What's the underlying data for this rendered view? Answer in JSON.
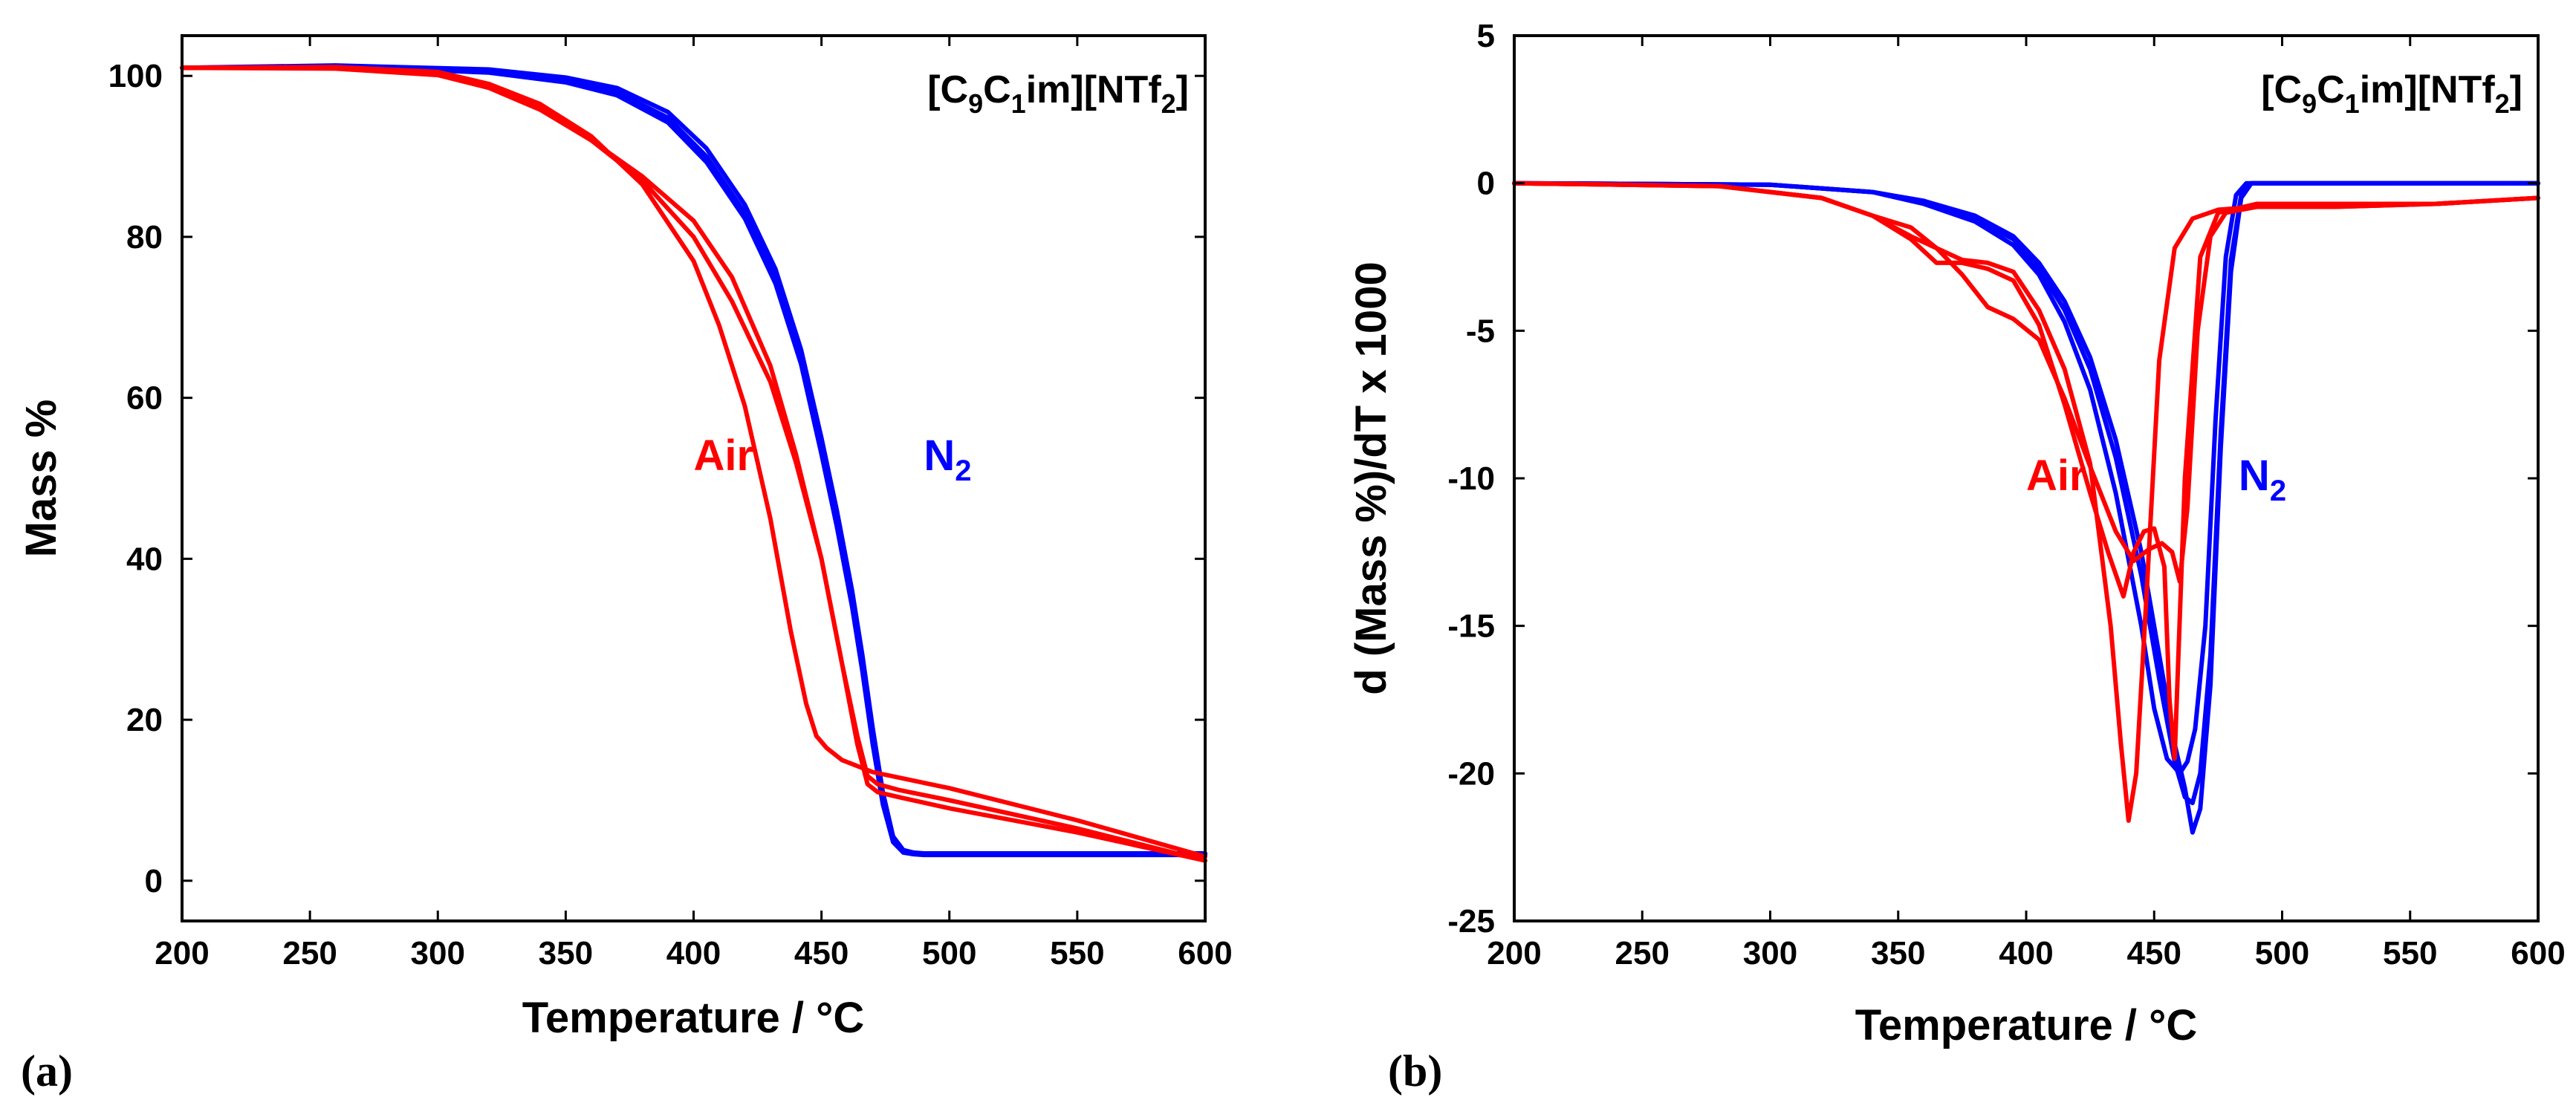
{
  "chart_data": [
    {
      "type": "line",
      "panel_label": "(a)",
      "title": "",
      "compound": {
        "prefix": "[C",
        "s1": "9",
        "mid": "C",
        "s2": "1",
        "mid2": "im][NTf",
        "s3": "2",
        "suffix": "]"
      },
      "xlabel": "Temperature / °C",
      "ylabel": "Mass %",
      "xlim": [
        200,
        600
      ],
      "ylim": [
        -5,
        105
      ],
      "xticks": [
        200,
        250,
        300,
        350,
        400,
        450,
        500,
        550,
        600
      ],
      "yticks": [
        0,
        20,
        40,
        60,
        80,
        100
      ],
      "grid": false,
      "annotations": [
        {
          "text": "Air",
          "sub": "",
          "color": "#ff0000",
          "x": 400,
          "y": 51
        },
        {
          "text": "N",
          "sub": "2",
          "color": "#0000ff",
          "x": 490,
          "y": 51
        }
      ],
      "series": [
        {
          "name": "N2 run 1",
          "color": "#0000ff",
          "x": [
            200,
            260,
            320,
            350,
            370,
            390,
            405,
            420,
            432,
            442,
            450,
            456,
            462,
            466,
            470,
            474,
            478,
            482,
            486,
            490,
            500,
            550,
            600
          ],
          "y": [
            101,
            101.3,
            100.8,
            99.8,
            98.5,
            95.5,
            91,
            84,
            76,
            66,
            55,
            46,
            36,
            28,
            19,
            11,
            5.5,
            3.8,
            3.5,
            3.4,
            3.4,
            3.4,
            3.4
          ]
        },
        {
          "name": "N2 run 2",
          "color": "#0000ff",
          "x": [
            200,
            260,
            320,
            350,
            370,
            390,
            405,
            420,
            432,
            442,
            450,
            456,
            462,
            466,
            470,
            474,
            478,
            482,
            486,
            490,
            500,
            550,
            600
          ],
          "y": [
            101,
            101.2,
            100.6,
            99.5,
            98,
            94.8,
            90,
            83,
            75,
            65,
            54,
            45,
            35,
            27,
            18,
            10,
            5,
            3.6,
            3.4,
            3.3,
            3.3,
            3.3,
            3.3
          ]
        },
        {
          "name": "N2 run 3",
          "color": "#0000ff",
          "x": [
            200,
            260,
            320,
            350,
            370,
            390,
            405,
            420,
            432,
            442,
            450,
            456,
            462,
            466,
            470,
            474,
            478,
            482,
            486,
            490,
            500,
            550,
            600
          ],
          "y": [
            101,
            101.2,
            100.4,
            99.2,
            97.6,
            94.2,
            89.3,
            82.3,
            74.2,
            64.2,
            53,
            44,
            34,
            26,
            17,
            9.5,
            4.8,
            3.5,
            3.3,
            3.2,
            3.2,
            3.2,
            3.2
          ]
        },
        {
          "name": "Air run 1",
          "color": "#ff0000",
          "x": [
            200,
            260,
            300,
            320,
            340,
            360,
            380,
            400,
            410,
            420,
            430,
            438,
            444,
            448,
            452,
            458,
            470,
            500,
            550,
            600
          ],
          "y": [
            101,
            101.1,
            100.5,
            99,
            96.5,
            92.5,
            86.5,
            77,
            69,
            59,
            45,
            31,
            22,
            18,
            16.5,
            15,
            13.5,
            11.5,
            7.5,
            3
          ]
        },
        {
          "name": "Air run 2",
          "color": "#ff0000",
          "x": [
            200,
            260,
            300,
            320,
            340,
            360,
            380,
            400,
            415,
            430,
            440,
            450,
            458,
            464,
            468,
            472,
            480,
            500,
            550,
            600
          ],
          "y": [
            101,
            101,
            100.3,
            98.8,
            96,
            92,
            87,
            80,
            72,
            62,
            52,
            40,
            27,
            18,
            13,
            12,
            11.3,
            10,
            6.5,
            2.5
          ]
        },
        {
          "name": "Air run 3",
          "color": "#ff0000",
          "x": [
            200,
            260,
            300,
            320,
            340,
            360,
            380,
            400,
            415,
            430,
            440,
            450,
            458,
            464,
            468,
            472,
            480,
            500,
            550,
            600
          ],
          "y": [
            101,
            100.9,
            100.1,
            98.5,
            95.8,
            92,
            87.5,
            82,
            75,
            64,
            53,
            40,
            27,
            17,
            12,
            11,
            10.4,
            9,
            6,
            2.5
          ]
        }
      ]
    },
    {
      "type": "line",
      "panel_label": "(b)",
      "title": "",
      "compound": {
        "prefix": "[C",
        "s1": "9",
        "mid": "C",
        "s2": "1",
        "mid2": "im][NTf",
        "s3": "2",
        "suffix": "]"
      },
      "xlabel": "Temperature / °C",
      "ylabel": "d (Mass %)/dT x 1000",
      "xlim": [
        200,
        600
      ],
      "ylim": [
        -25,
        5
      ],
      "xticks": [
        200,
        250,
        300,
        350,
        400,
        450,
        500,
        550,
        600
      ],
      "yticks": [
        5,
        0,
        -5,
        -10,
        -15,
        -20,
        -25
      ],
      "grid": false,
      "annotations": [
        {
          "text": "Air",
          "sub": "",
          "color": "#ff0000",
          "x": 400,
          "y": -10.4
        },
        {
          "text": "N",
          "sub": "2",
          "color": "#0000ff",
          "x": 483,
          "y": -10.4
        }
      ],
      "series": [
        {
          "name": "N2 run 1",
          "color": "#0000ff",
          "x": [
            200,
            300,
            340,
            360,
            380,
            395,
            405,
            415,
            425,
            435,
            445,
            452,
            458,
            462,
            465,
            468,
            472,
            476,
            480,
            484,
            488,
            495,
            520,
            600
          ],
          "y": [
            0,
            -0.05,
            -0.3,
            -0.6,
            -1.1,
            -1.8,
            -2.7,
            -4,
            -5.9,
            -8.7,
            -12.5,
            -16,
            -19,
            -20.5,
            -22,
            -21.2,
            -17,
            -9,
            -3,
            -0.5,
            0,
            0,
            0,
            0
          ]
        },
        {
          "name": "N2 run 2",
          "color": "#0000ff",
          "x": [
            200,
            300,
            340,
            360,
            380,
            395,
            405,
            415,
            425,
            435,
            445,
            452,
            458,
            462,
            465,
            468,
            472,
            476,
            480,
            484,
            488,
            495,
            520,
            600
          ],
          "y": [
            0,
            -0.05,
            -0.3,
            -0.6,
            -1.2,
            -1.9,
            -2.9,
            -4.3,
            -6.3,
            -9.3,
            -13.3,
            -16.8,
            -19.6,
            -20.8,
            -21,
            -20,
            -16,
            -8.5,
            -2.6,
            -0.4,
            0,
            0,
            0,
            0
          ]
        },
        {
          "name": "N2 run 3",
          "color": "#0000ff",
          "x": [
            200,
            300,
            340,
            360,
            380,
            395,
            405,
            415,
            425,
            435,
            445,
            450,
            455,
            460,
            463,
            466,
            470,
            474,
            478,
            482,
            486,
            495,
            520,
            600
          ],
          "y": [
            0,
            -0.05,
            -0.3,
            -0.7,
            -1.3,
            -2.1,
            -3.1,
            -4.7,
            -7,
            -10.5,
            -15,
            -17.8,
            -19.5,
            -20,
            -19.6,
            -18.5,
            -15,
            -8,
            -2.5,
            -0.4,
            0,
            0,
            0,
            0
          ]
        },
        {
          "name": "Air run 1",
          "color": "#ff0000",
          "x": [
            200,
            280,
            320,
            340,
            355,
            365,
            375,
            385,
            395,
            405,
            415,
            425,
            433,
            437,
            440,
            443,
            447,
            452,
            458,
            465,
            475,
            490,
            520,
            560,
            600
          ],
          "y": [
            0,
            -0.1,
            -0.5,
            -1.1,
            -1.8,
            -2.2,
            -2.6,
            -2.7,
            -3,
            -4.3,
            -6.3,
            -9.5,
            -15,
            -19,
            -21.6,
            -20,
            -14,
            -6,
            -2.2,
            -1.2,
            -0.9,
            -0.8,
            -0.8,
            -0.7,
            -0.5
          ]
        },
        {
          "name": "Air run 2",
          "color": "#ff0000",
          "x": [
            200,
            280,
            320,
            340,
            355,
            365,
            375,
            385,
            395,
            405,
            415,
            425,
            432,
            438,
            442,
            446,
            450,
            454,
            456,
            458,
            462,
            468,
            475,
            490,
            520,
            560,
            600
          ],
          "y": [
            0,
            -0.1,
            -0.5,
            -1.1,
            -1.9,
            -2.7,
            -2.7,
            -2.9,
            -3.3,
            -4.8,
            -7.5,
            -10.5,
            -12.5,
            -14,
            -12.5,
            -11.8,
            -11.7,
            -13,
            -17.5,
            -19.5,
            -10,
            -2.5,
            -1,
            -0.7,
            -0.7,
            -0.7,
            -0.5
          ]
        },
        {
          "name": "Air run 3",
          "color": "#ff0000",
          "x": [
            200,
            280,
            320,
            340,
            355,
            365,
            375,
            385,
            395,
            405,
            415,
            425,
            435,
            442,
            448,
            453,
            457,
            460,
            463,
            467,
            472,
            478,
            490,
            520,
            560,
            600
          ],
          "y": [
            0,
            -0.1,
            -0.5,
            -1.1,
            -1.5,
            -2.2,
            -3.1,
            -4.2,
            -4.6,
            -5.3,
            -7.3,
            -9.6,
            -11.8,
            -12.8,
            -12.4,
            -12.2,
            -12.5,
            -13.5,
            -11,
            -5,
            -1.8,
            -1,
            -0.8,
            -0.8,
            -0.7,
            -0.5
          ]
        }
      ]
    }
  ]
}
